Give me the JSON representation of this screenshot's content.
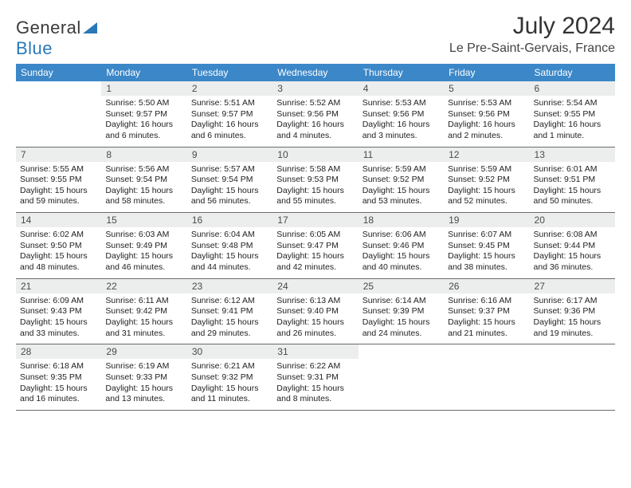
{
  "logo": {
    "general": "General",
    "blue": "Blue"
  },
  "title": {
    "month": "July 2024",
    "location": "Le Pre-Saint-Gervais, France"
  },
  "colors": {
    "header_bg": "#3b87c8",
    "daynum_bg": "#eceded",
    "rule": "#6b6b6b",
    "logo_blue": "#2a78b8"
  },
  "weekdays": [
    "Sunday",
    "Monday",
    "Tuesday",
    "Wednesday",
    "Thursday",
    "Friday",
    "Saturday"
  ],
  "weeks": [
    [
      null,
      {
        "n": "1",
        "sr": "Sunrise: 5:50 AM",
        "ss": "Sunset: 9:57 PM",
        "d1": "Daylight: 16 hours",
        "d2": "and 6 minutes."
      },
      {
        "n": "2",
        "sr": "Sunrise: 5:51 AM",
        "ss": "Sunset: 9:57 PM",
        "d1": "Daylight: 16 hours",
        "d2": "and 6 minutes."
      },
      {
        "n": "3",
        "sr": "Sunrise: 5:52 AM",
        "ss": "Sunset: 9:56 PM",
        "d1": "Daylight: 16 hours",
        "d2": "and 4 minutes."
      },
      {
        "n": "4",
        "sr": "Sunrise: 5:53 AM",
        "ss": "Sunset: 9:56 PM",
        "d1": "Daylight: 16 hours",
        "d2": "and 3 minutes."
      },
      {
        "n": "5",
        "sr": "Sunrise: 5:53 AM",
        "ss": "Sunset: 9:56 PM",
        "d1": "Daylight: 16 hours",
        "d2": "and 2 minutes."
      },
      {
        "n": "6",
        "sr": "Sunrise: 5:54 AM",
        "ss": "Sunset: 9:55 PM",
        "d1": "Daylight: 16 hours",
        "d2": "and 1 minute."
      }
    ],
    [
      {
        "n": "7",
        "sr": "Sunrise: 5:55 AM",
        "ss": "Sunset: 9:55 PM",
        "d1": "Daylight: 15 hours",
        "d2": "and 59 minutes."
      },
      {
        "n": "8",
        "sr": "Sunrise: 5:56 AM",
        "ss": "Sunset: 9:54 PM",
        "d1": "Daylight: 15 hours",
        "d2": "and 58 minutes."
      },
      {
        "n": "9",
        "sr": "Sunrise: 5:57 AM",
        "ss": "Sunset: 9:54 PM",
        "d1": "Daylight: 15 hours",
        "d2": "and 56 minutes."
      },
      {
        "n": "10",
        "sr": "Sunrise: 5:58 AM",
        "ss": "Sunset: 9:53 PM",
        "d1": "Daylight: 15 hours",
        "d2": "and 55 minutes."
      },
      {
        "n": "11",
        "sr": "Sunrise: 5:59 AM",
        "ss": "Sunset: 9:52 PM",
        "d1": "Daylight: 15 hours",
        "d2": "and 53 minutes."
      },
      {
        "n": "12",
        "sr": "Sunrise: 5:59 AM",
        "ss": "Sunset: 9:52 PM",
        "d1": "Daylight: 15 hours",
        "d2": "and 52 minutes."
      },
      {
        "n": "13",
        "sr": "Sunrise: 6:01 AM",
        "ss": "Sunset: 9:51 PM",
        "d1": "Daylight: 15 hours",
        "d2": "and 50 minutes."
      }
    ],
    [
      {
        "n": "14",
        "sr": "Sunrise: 6:02 AM",
        "ss": "Sunset: 9:50 PM",
        "d1": "Daylight: 15 hours",
        "d2": "and 48 minutes."
      },
      {
        "n": "15",
        "sr": "Sunrise: 6:03 AM",
        "ss": "Sunset: 9:49 PM",
        "d1": "Daylight: 15 hours",
        "d2": "and 46 minutes."
      },
      {
        "n": "16",
        "sr": "Sunrise: 6:04 AM",
        "ss": "Sunset: 9:48 PM",
        "d1": "Daylight: 15 hours",
        "d2": "and 44 minutes."
      },
      {
        "n": "17",
        "sr": "Sunrise: 6:05 AM",
        "ss": "Sunset: 9:47 PM",
        "d1": "Daylight: 15 hours",
        "d2": "and 42 minutes."
      },
      {
        "n": "18",
        "sr": "Sunrise: 6:06 AM",
        "ss": "Sunset: 9:46 PM",
        "d1": "Daylight: 15 hours",
        "d2": "and 40 minutes."
      },
      {
        "n": "19",
        "sr": "Sunrise: 6:07 AM",
        "ss": "Sunset: 9:45 PM",
        "d1": "Daylight: 15 hours",
        "d2": "and 38 minutes."
      },
      {
        "n": "20",
        "sr": "Sunrise: 6:08 AM",
        "ss": "Sunset: 9:44 PM",
        "d1": "Daylight: 15 hours",
        "d2": "and 36 minutes."
      }
    ],
    [
      {
        "n": "21",
        "sr": "Sunrise: 6:09 AM",
        "ss": "Sunset: 9:43 PM",
        "d1": "Daylight: 15 hours",
        "d2": "and 33 minutes."
      },
      {
        "n": "22",
        "sr": "Sunrise: 6:11 AM",
        "ss": "Sunset: 9:42 PM",
        "d1": "Daylight: 15 hours",
        "d2": "and 31 minutes."
      },
      {
        "n": "23",
        "sr": "Sunrise: 6:12 AM",
        "ss": "Sunset: 9:41 PM",
        "d1": "Daylight: 15 hours",
        "d2": "and 29 minutes."
      },
      {
        "n": "24",
        "sr": "Sunrise: 6:13 AM",
        "ss": "Sunset: 9:40 PM",
        "d1": "Daylight: 15 hours",
        "d2": "and 26 minutes."
      },
      {
        "n": "25",
        "sr": "Sunrise: 6:14 AM",
        "ss": "Sunset: 9:39 PM",
        "d1": "Daylight: 15 hours",
        "d2": "and 24 minutes."
      },
      {
        "n": "26",
        "sr": "Sunrise: 6:16 AM",
        "ss": "Sunset: 9:37 PM",
        "d1": "Daylight: 15 hours",
        "d2": "and 21 minutes."
      },
      {
        "n": "27",
        "sr": "Sunrise: 6:17 AM",
        "ss": "Sunset: 9:36 PM",
        "d1": "Daylight: 15 hours",
        "d2": "and 19 minutes."
      }
    ],
    [
      {
        "n": "28",
        "sr": "Sunrise: 6:18 AM",
        "ss": "Sunset: 9:35 PM",
        "d1": "Daylight: 15 hours",
        "d2": "and 16 minutes."
      },
      {
        "n": "29",
        "sr": "Sunrise: 6:19 AM",
        "ss": "Sunset: 9:33 PM",
        "d1": "Daylight: 15 hours",
        "d2": "and 13 minutes."
      },
      {
        "n": "30",
        "sr": "Sunrise: 6:21 AM",
        "ss": "Sunset: 9:32 PM",
        "d1": "Daylight: 15 hours",
        "d2": "and 11 minutes."
      },
      {
        "n": "31",
        "sr": "Sunrise: 6:22 AM",
        "ss": "Sunset: 9:31 PM",
        "d1": "Daylight: 15 hours",
        "d2": "and 8 minutes."
      },
      null,
      null,
      null
    ]
  ]
}
